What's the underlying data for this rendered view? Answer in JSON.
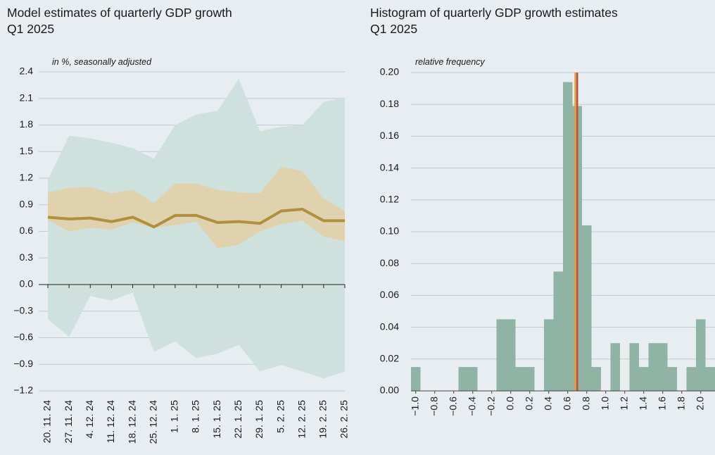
{
  "chart_data": [
    {
      "type": "line",
      "title": "Model estimates of quarterly GDP growth",
      "subtitle": "Q1 2025",
      "y_label": "in %, seasonally adjusted",
      "categories": [
        "20. 11. 24",
        "27. 11. 24",
        "4. 12. 24",
        "11. 12. 24",
        "18. 12. 24",
        "25. 12. 24",
        "1. 1. 25",
        "8. 1. 25",
        "15. 1. 25",
        "22. 1. 25",
        "29. 1. 25",
        "5. 2. 25",
        "12. 2. 25",
        "19. 2. 25",
        "26. 2. 25"
      ],
      "bands": [
        {
          "color": "#cfe1dc",
          "high": [
            1.18,
            1.68,
            1.65,
            1.6,
            1.54,
            1.42,
            1.8,
            1.92,
            1.96,
            2.32,
            1.73,
            1.78,
            1.8,
            2.06,
            2.11
          ],
          "low": [
            -0.39,
            -0.59,
            -0.13,
            -0.18,
            -0.09,
            -0.76,
            -0.64,
            -0.83,
            -0.78,
            -0.68,
            -0.98,
            -0.91,
            -0.98,
            -1.06,
            -0.98
          ]
        },
        {
          "color": "#e3cfa6",
          "high": [
            1.04,
            1.09,
            1.1,
            1.03,
            1.07,
            0.92,
            1.14,
            1.14,
            1.07,
            1.04,
            1.03,
            1.33,
            1.28,
            0.97,
            0.83
          ],
          "low": [
            0.73,
            0.6,
            0.64,
            0.62,
            0.7,
            0.64,
            0.67,
            0.71,
            0.41,
            0.45,
            0.6,
            0.68,
            0.72,
            0.54,
            0.49
          ]
        }
      ],
      "values": [
        0.76,
        0.74,
        0.75,
        0.71,
        0.76,
        0.65,
        0.78,
        0.78,
        0.7,
        0.71,
        0.69,
        0.83,
        0.85,
        0.72,
        0.72
      ],
      "color": "#b08f3e",
      "ylim": [
        -1.2,
        2.4
      ],
      "yticks": [
        {
          "value": -1.2,
          "label": "−1.2"
        },
        {
          "value": -0.9,
          "label": "−0.9"
        },
        {
          "value": -0.6,
          "label": "−0.6"
        },
        {
          "value": -0.3,
          "label": "−0.3"
        },
        {
          "value": 0,
          "label": "0.0"
        },
        0.3,
        0.6,
        0.9,
        1.2,
        1.5,
        1.8,
        2.1,
        2.4
      ],
      "grid": true
    },
    {
      "type": "histogram",
      "title": "Histogram of quarterly GDP growth estimates",
      "subtitle": "Q1 2025",
      "y_label": "relative frequency",
      "bins": [
        -1.05,
        -0.95,
        -0.85,
        -0.75,
        -0.65,
        -0.55,
        -0.45,
        -0.35,
        -0.25,
        -0.15,
        -0.05,
        0.05,
        0.15,
        0.25,
        0.35,
        0.45,
        0.55,
        0.65,
        0.75,
        0.85,
        0.95,
        1.05,
        1.15,
        1.25,
        1.35,
        1.45,
        1.55,
        1.65,
        1.75,
        1.85,
        1.95,
        2.05,
        2.15
      ],
      "values": [
        0.015,
        0,
        0,
        0,
        0,
        0.015,
        0.015,
        0,
        0,
        0.045,
        0.045,
        0.015,
        0.015,
        0,
        0.045,
        0.075,
        0.194,
        0.179,
        0.104,
        0.015,
        0,
        0.03,
        0,
        0.03,
        0.015,
        0.03,
        0.03,
        0.015,
        0,
        0.015,
        0.045,
        0.015
      ],
      "color": "#8fb4a6",
      "vlines": [
        {
          "value": 0.68,
          "color": "#e39a3c"
        },
        {
          "value": 0.7,
          "color": "#b4533a"
        }
      ],
      "xlim": [
        -1.05,
        2.15
      ],
      "xticks": [
        {
          "value": -1.0,
          "label": "−1.0"
        },
        {
          "value": -0.8,
          "label": "−0.8"
        },
        {
          "value": -0.6,
          "label": "−0.6"
        },
        {
          "value": -0.4,
          "label": "−0.4"
        },
        {
          "value": -0.2,
          "label": "−0.2"
        },
        {
          "value": 0,
          "label": "0.0"
        },
        0.2,
        0.4,
        0.6,
        0.8,
        {
          "value": 1,
          "label": "1.0"
        },
        1.2,
        1.4,
        1.6,
        1.8,
        {
          "value": 2,
          "label": "2.0"
        }
      ],
      "ylim": [
        0,
        0.2
      ],
      "yticks": [
        {
          "value": 0,
          "label": "0.00"
        },
        0.02,
        0.04,
        0.06,
        0.08,
        {
          "value": 0.1,
          "label": "0.10"
        },
        0.12,
        0.14,
        0.16,
        0.18,
        {
          "value": 0.2,
          "label": "0.20"
        }
      ],
      "grid": true
    }
  ]
}
